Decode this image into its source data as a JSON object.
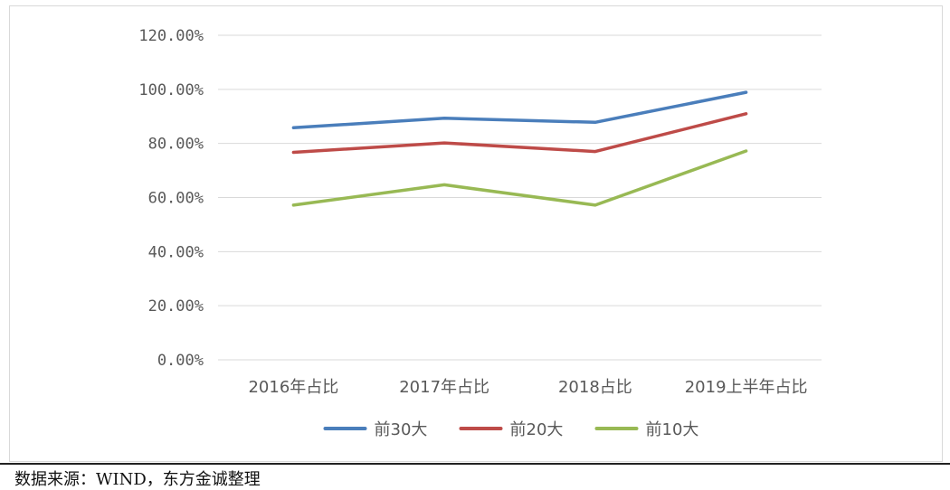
{
  "chart_data": {
    "type": "line",
    "categories": [
      "2016年占比",
      "2017年占比",
      "2018占比",
      "2019上半年占比"
    ],
    "y_ticks": [
      "0.00%",
      "20.00%",
      "40.00%",
      "60.00%",
      "80.00%",
      "100.00%",
      "120.00%"
    ],
    "ylim": [
      0,
      120
    ],
    "grid": true,
    "legend_position": "bottom",
    "series": [
      {
        "name": "前30大",
        "values": [
          85.8,
          89.3,
          87.8,
          98.9
        ],
        "color": "#4a7ebb"
      },
      {
        "name": "前20大",
        "values": [
          76.7,
          80.2,
          77.0,
          91.0
        ],
        "color": "#be4b48"
      },
      {
        "name": "前10大",
        "values": [
          57.2,
          64.7,
          57.2,
          77.2
        ],
        "color": "#98b954"
      }
    ]
  },
  "source_note": "数据来源：WIND，东方金诚整理"
}
